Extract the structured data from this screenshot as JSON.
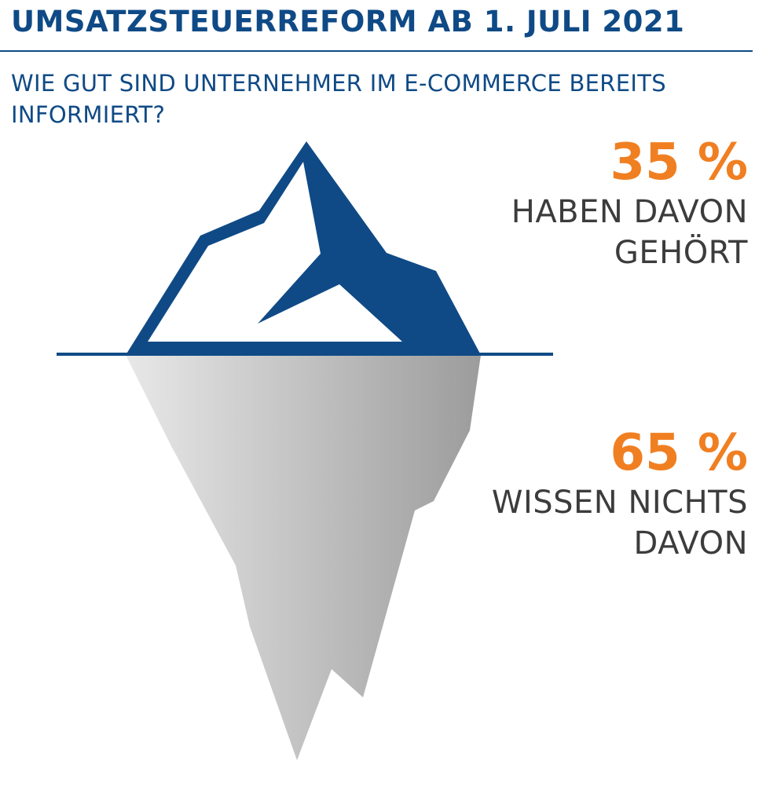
{
  "header": {
    "title": "UMSATZSTEUERREFORM AB 1. JULI 2021",
    "subtitle": "WIE GUT SIND UNTERNEHMER IM E-COMMERCE BEREITS INFORMIERT?"
  },
  "colors": {
    "brand_blue": "#0f4a86",
    "accent_orange": "#f07f22",
    "ice_grey_light": "#e6e6e6",
    "ice_grey_dark": "#9e9e9e",
    "text_dark": "#3c3c3c"
  },
  "chart_data": {
    "type": "iceberg-infographic",
    "title": "UMSATZSTEUERREFORM AB 1. JULI 2021",
    "subtitle": "WIE GUT SIND UNTERNEHMER IM E-COMMERCE BEREITS INFORMIERT?",
    "categories": [
      "HABEN DAVON GEHÖRT",
      "WISSEN NICHTS DAVON"
    ],
    "values": [
      35,
      65
    ],
    "unit": "%",
    "labels": {
      "above": {
        "value_text": "35 %",
        "text": "HABEN DAVON GEHÖRT"
      },
      "below": {
        "value_text": "65 %",
        "text": "WISSEN NICHTS DAVON"
      }
    }
  }
}
